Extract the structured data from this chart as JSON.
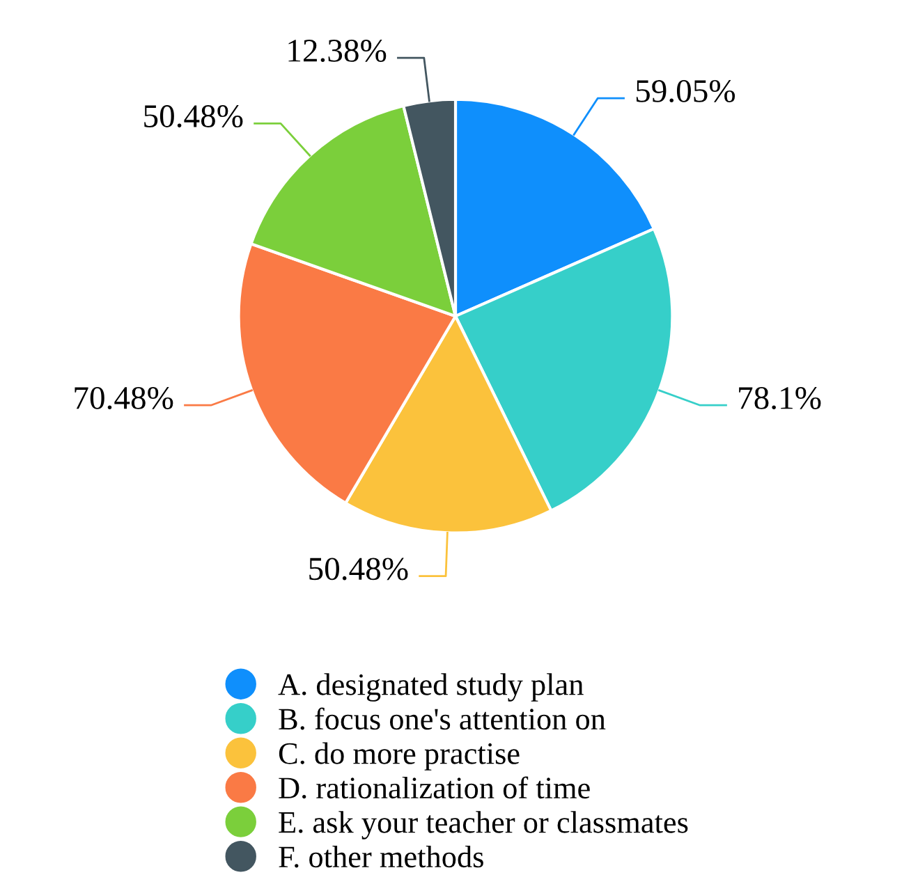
{
  "chart_data": {
    "type": "pie",
    "categories": [
      "A. designated study plan",
      "B. focus one's attention on",
      "C. do more practise",
      "D. rationalization of time",
      "E. ask your teacher or classmates",
      "F. other methods"
    ],
    "values": [
      59.05,
      78.1,
      50.48,
      70.48,
      50.48,
      12.38
    ],
    "value_labels": [
      "59.05%",
      "78.1%",
      "50.48%",
      "70.48%",
      "50.48%",
      "12.38%"
    ],
    "colors": [
      "#0f8ffc",
      "#36cfc9",
      "#fbc23c",
      "#fa7a45",
      "#7bcf3b",
      "#435660"
    ],
    "legend": "bottom"
  }
}
